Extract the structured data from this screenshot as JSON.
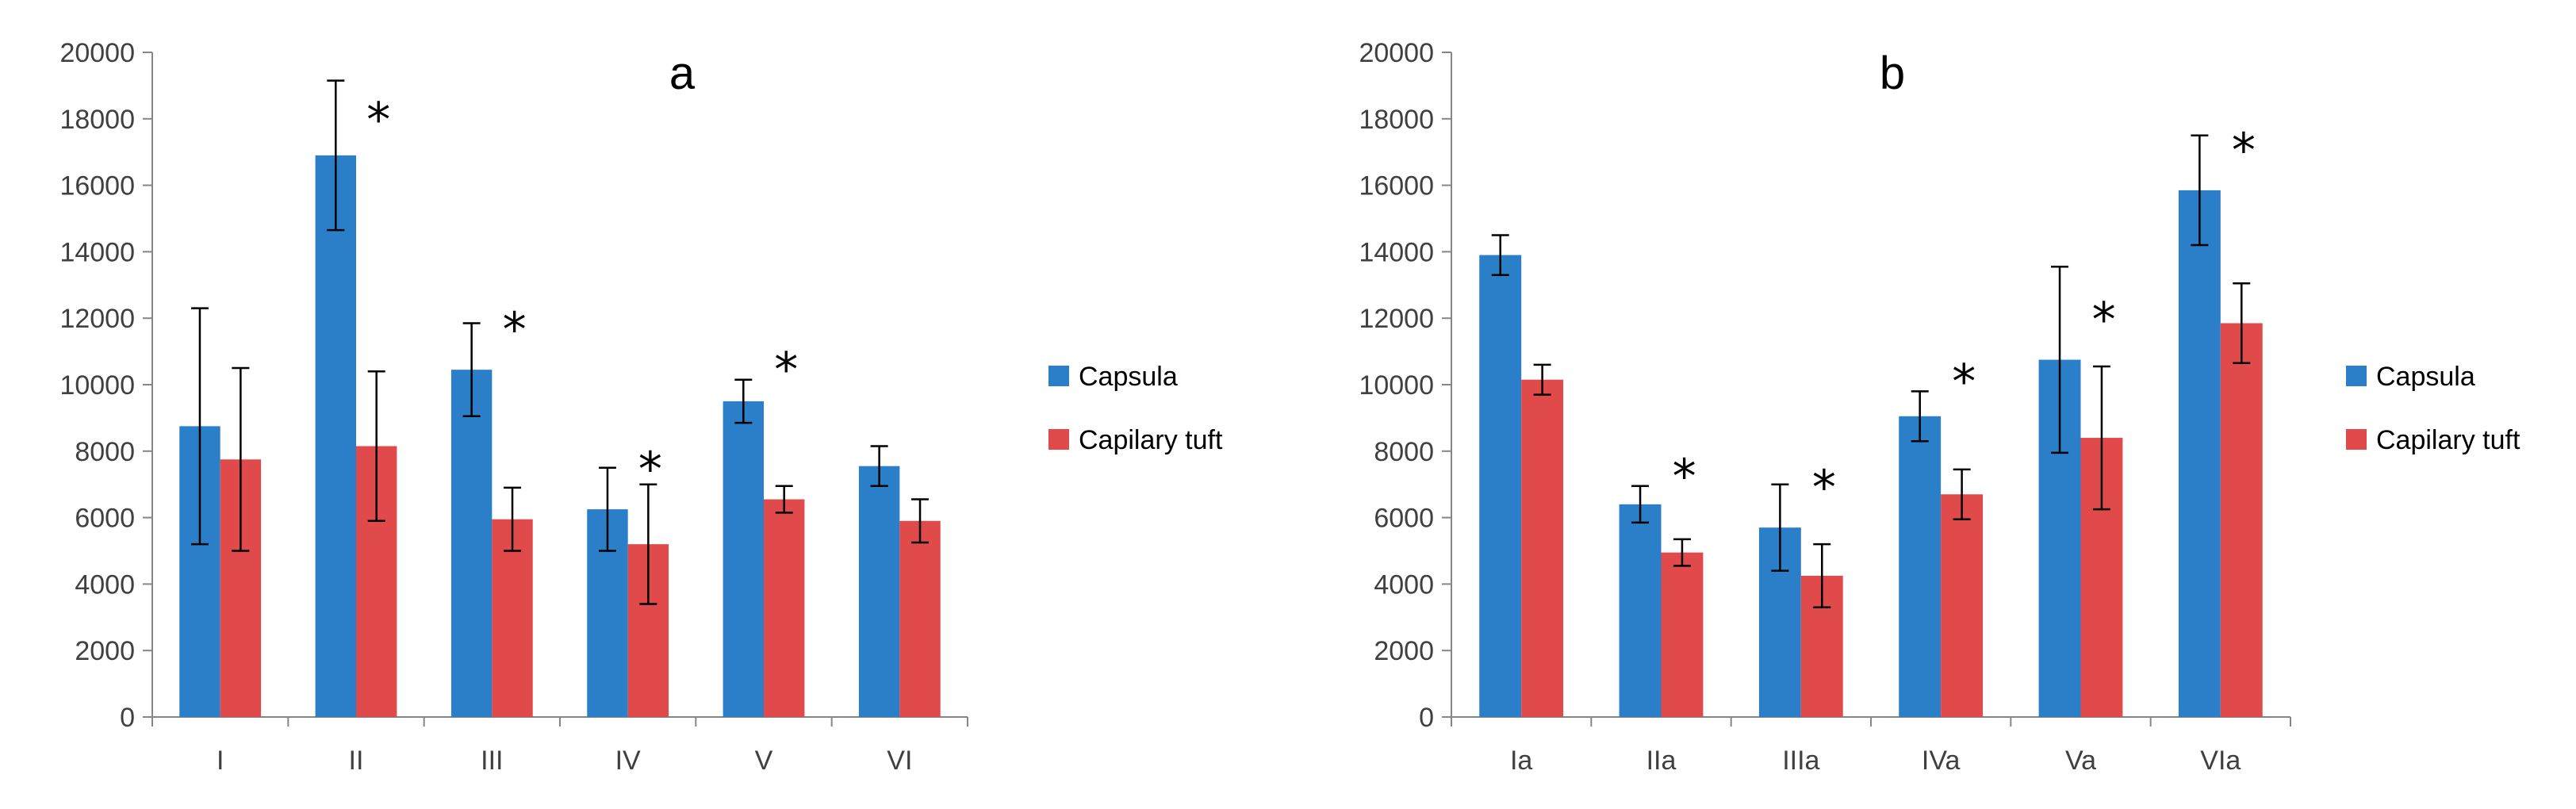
{
  "chart_data": [
    {
      "type": "bar",
      "title": "a",
      "xlabel": "",
      "ylabel": "",
      "ylim": [
        0,
        20000
      ],
      "yticks": [
        0,
        2000,
        4000,
        6000,
        8000,
        10000,
        12000,
        14000,
        16000,
        18000,
        20000
      ],
      "categories": [
        "I",
        "II",
        "III",
        "IV",
        "V",
        "VI"
      ],
      "series": [
        {
          "name": "Capsula",
          "color": "#2a7fc8",
          "values": [
            8750,
            16900,
            10450,
            6250,
            9500,
            7550
          ],
          "errors": [
            3550,
            2250,
            1400,
            1250,
            650,
            600
          ]
        },
        {
          "name": "Capilary tuft",
          "color": "#e04a4a",
          "values": [
            7750,
            8150,
            5950,
            5200,
            6550,
            5900
          ],
          "errors": [
            2750,
            2250,
            950,
            1800,
            400,
            650
          ]
        }
      ],
      "significance": [
        "",
        "*",
        "*",
        "*",
        "*",
        ""
      ],
      "legend_position": "right"
    },
    {
      "type": "bar",
      "title": "b",
      "xlabel": "",
      "ylabel": "",
      "ylim": [
        0,
        20000
      ],
      "yticks": [
        0,
        2000,
        4000,
        6000,
        8000,
        10000,
        12000,
        14000,
        16000,
        18000,
        20000
      ],
      "categories": [
        "Ia",
        "IIa",
        "IIIa",
        "IVa",
        "Va",
        "VIa"
      ],
      "series": [
        {
          "name": "Capsula",
          "color": "#2a7fc8",
          "values": [
            13900,
            6400,
            5700,
            9050,
            10750,
            15850
          ],
          "errors": [
            600,
            550,
            1300,
            750,
            2800,
            1650
          ]
        },
        {
          "name": "Capilary tuft",
          "color": "#e04a4a",
          "values": [
            10150,
            4950,
            4250,
            6700,
            8400,
            11850
          ],
          "errors": [
            450,
            400,
            950,
            750,
            2150,
            1200
          ]
        }
      ],
      "significance": [
        "",
        "*",
        "*",
        "*",
        "*",
        "*"
      ],
      "legend_position": "right"
    }
  ],
  "axis_color": "#868686",
  "text_color": "#404040"
}
